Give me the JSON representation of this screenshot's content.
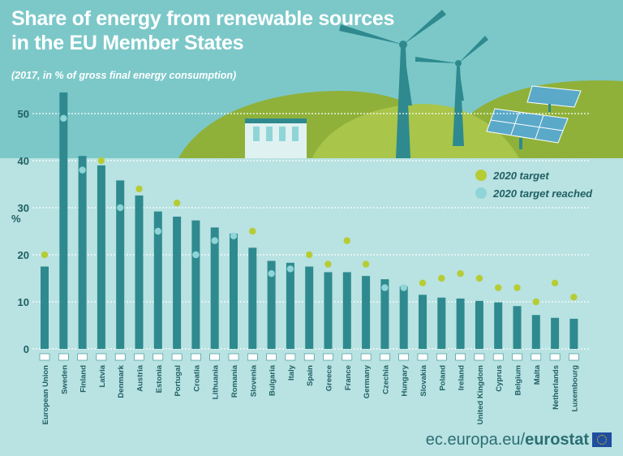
{
  "title_line1": "Share of energy from renewable sources",
  "title_line2": "in the EU Member States",
  "subtitle": "(2017, in % of gross final energy consumption)",
  "footer": {
    "site": "ec.europa.eu/",
    "brand": "eurostat"
  },
  "colors": {
    "bar": "#2e8a8e",
    "target": "#b6cc35",
    "reached": "#8fd5d8",
    "hill": "#8fb13a",
    "sky": "#7cc8c9",
    "panel": "#b9e2e2"
  },
  "chart_data": {
    "type": "bar",
    "ylabel": "%",
    "ylim": [
      0,
      55
    ],
    "yticks": [
      0,
      10,
      20,
      30,
      40,
      50
    ],
    "categories": [
      "European Union",
      "Sweden",
      "Finland",
      "Latvia",
      "Denmark",
      "Austria",
      "Estonia",
      "Portugal",
      "Croatia",
      "Lithuania",
      "Romania",
      "Slovenia",
      "Bulgaria",
      "Italy",
      "Spain",
      "Greece",
      "France",
      "Germany",
      "Czechia",
      "Hungary",
      "Slovakia",
      "Poland",
      "Ireland",
      "United Kingdom",
      "Cyprus",
      "Belgium",
      "Malta",
      "Netherlands",
      "Luxembourg"
    ],
    "values": [
      17.5,
      54.5,
      41.0,
      39.0,
      35.8,
      32.6,
      29.2,
      28.1,
      27.3,
      25.8,
      24.5,
      21.5,
      18.7,
      18.3,
      17.5,
      16.3,
      16.3,
      15.5,
      14.8,
      13.3,
      11.5,
      10.9,
      10.7,
      10.2,
      9.9,
      9.1,
      7.2,
      6.6,
      6.4
    ],
    "targets": [
      {
        "country": "European Union",
        "value": 20,
        "reached": false
      },
      {
        "country": "Sweden",
        "value": 49,
        "reached": true
      },
      {
        "country": "Finland",
        "value": 38,
        "reached": true
      },
      {
        "country": "Latvia",
        "value": 40,
        "reached": false
      },
      {
        "country": "Denmark",
        "value": 30,
        "reached": true
      },
      {
        "country": "Austria",
        "value": 34,
        "reached": false
      },
      {
        "country": "Estonia",
        "value": 25,
        "reached": true
      },
      {
        "country": "Portugal",
        "value": 31,
        "reached": false
      },
      {
        "country": "Croatia",
        "value": 20,
        "reached": true
      },
      {
        "country": "Lithuania",
        "value": 23,
        "reached": true
      },
      {
        "country": "Romania",
        "value": 24,
        "reached": true
      },
      {
        "country": "Slovenia",
        "value": 25,
        "reached": false
      },
      {
        "country": "Bulgaria",
        "value": 16,
        "reached": true
      },
      {
        "country": "Italy",
        "value": 17,
        "reached": true
      },
      {
        "country": "Spain",
        "value": 20,
        "reached": false
      },
      {
        "country": "Greece",
        "value": 18,
        "reached": false
      },
      {
        "country": "France",
        "value": 23,
        "reached": false
      },
      {
        "country": "Germany",
        "value": 18,
        "reached": false
      },
      {
        "country": "Czechia",
        "value": 13,
        "reached": true
      },
      {
        "country": "Hungary",
        "value": 13,
        "reached": true
      },
      {
        "country": "Slovakia",
        "value": 14,
        "reached": false
      },
      {
        "country": "Poland",
        "value": 15,
        "reached": false
      },
      {
        "country": "Ireland",
        "value": 16,
        "reached": false
      },
      {
        "country": "United Kingdom",
        "value": 15,
        "reached": false
      },
      {
        "country": "Cyprus",
        "value": 13,
        "reached": false
      },
      {
        "country": "Belgium",
        "value": 13,
        "reached": false
      },
      {
        "country": "Malta",
        "value": 10,
        "reached": false
      },
      {
        "country": "Netherlands",
        "value": 14,
        "reached": false
      },
      {
        "country": "Luxembourg",
        "value": 11,
        "reached": false
      }
    ],
    "legend": [
      {
        "label": "2020 target",
        "key": "target"
      },
      {
        "label": "2020 target reached",
        "key": "reached"
      }
    ],
    "legend_position": "right",
    "grid": true
  }
}
